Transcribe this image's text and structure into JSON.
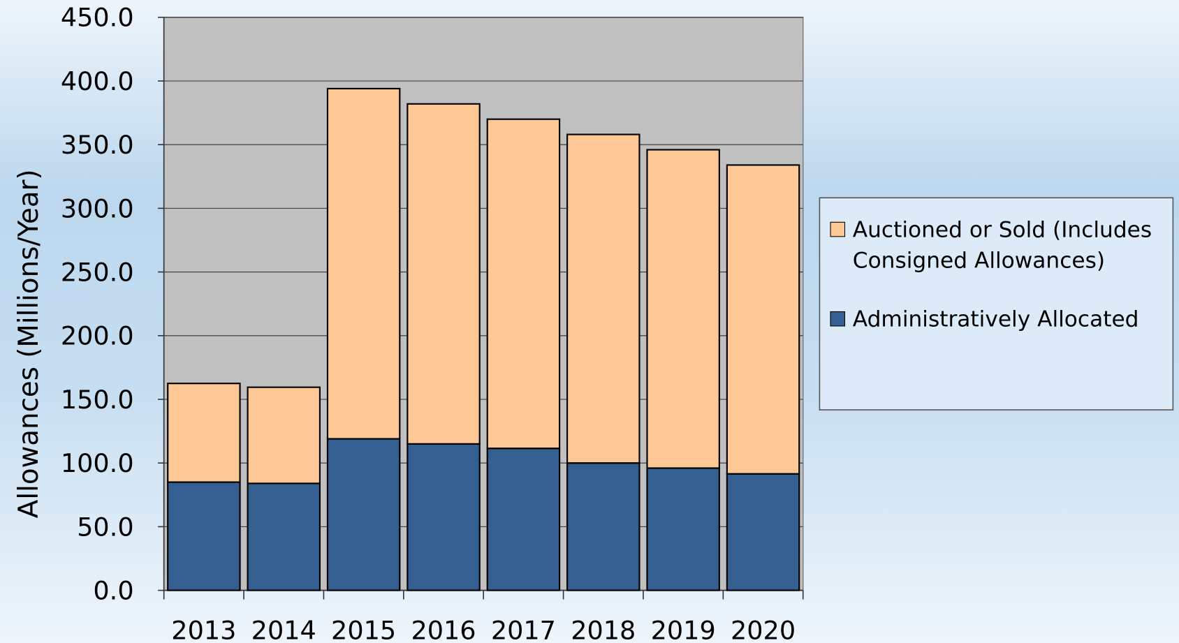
{
  "chart_data": {
    "type": "stacked_bar",
    "y_label": "Allowances (Millions/Year)",
    "categories": [
      "2013",
      "2014",
      "2015",
      "2016",
      "2017",
      "2018",
      "2019",
      "2020"
    ],
    "series": [
      {
        "name": "Administratively Allocated",
        "color": "#365f91",
        "values": [
          85,
          84,
          119,
          115,
          111.5,
          100,
          96,
          91.5
        ]
      },
      {
        "name": "Auctioned or Sold (Includes Consigned Allowances)",
        "color": "#fdc896",
        "values": [
          77.5,
          75.5,
          275,
          267,
          258.5,
          258,
          250,
          242.5
        ]
      }
    ],
    "ylim": [
      0,
      450
    ],
    "yticks": [
      {
        "value": 0,
        "label": "0.0"
      },
      {
        "value": 50,
        "label": "50.0"
      },
      {
        "value": 100,
        "label": "100.0"
      },
      {
        "value": 150,
        "label": "150.0"
      },
      {
        "value": 200,
        "label": "200.0"
      },
      {
        "value": 250,
        "label": "250.0"
      },
      {
        "value": 300,
        "label": "300.0"
      },
      {
        "value": 350,
        "label": "350.0"
      },
      {
        "value": 400,
        "label": "400.0"
      },
      {
        "value": 450,
        "label": "450.0"
      }
    ],
    "grid": true,
    "legend": "right",
    "plot_background": "#c0c0c0"
  }
}
